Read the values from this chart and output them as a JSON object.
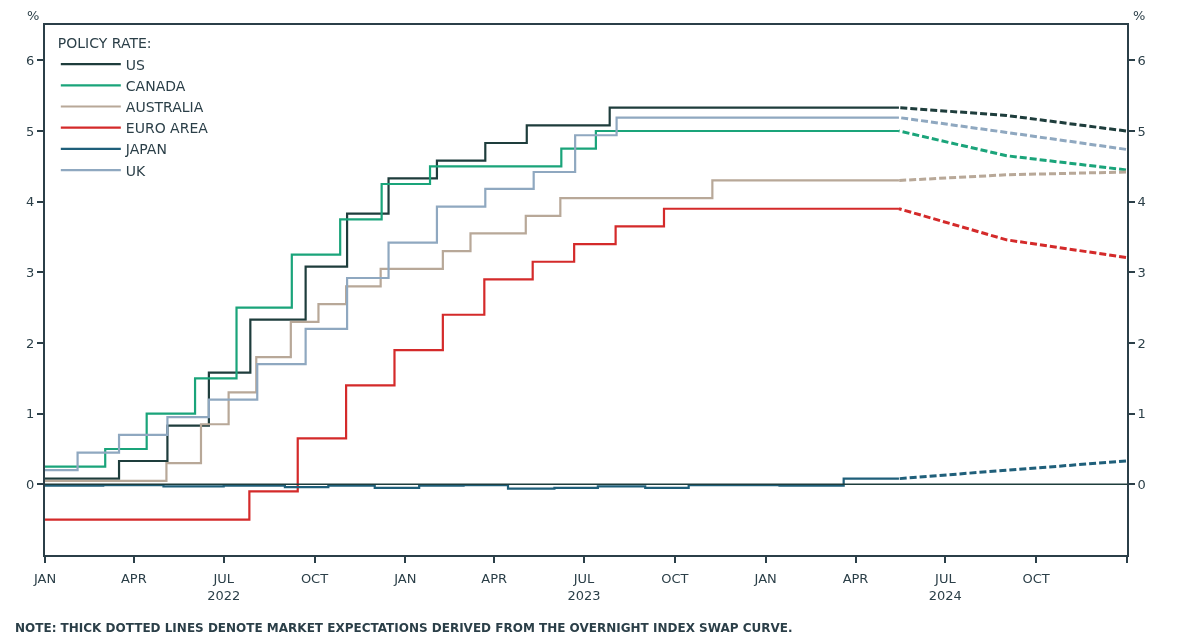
{
  "chart_data": {
    "type": "line",
    "legend_title": "POLICY RATE:",
    "ylabel": "%",
    "y2label": "%",
    "annotations": [
      "NOTE: THICK DOTTED LINES DENOTE MARKET EXPECTATIONS DERIVED FROM THE OVERNIGHT INDEX SWAP CURVE."
    ],
    "xlim": [
      "2022-01-01",
      "2025-01-01"
    ],
    "xticks": [
      {
        "value": "2022-01-01",
        "label": "JAN"
      },
      {
        "value": "2022-04-01",
        "label": "APR"
      },
      {
        "value": "2022-07-01",
        "label": "JUL\n2022"
      },
      {
        "value": "2022-10-01",
        "label": "OCT"
      },
      {
        "value": "2023-01-01",
        "label": "JAN"
      },
      {
        "value": "2023-04-01",
        "label": "APR"
      },
      {
        "value": "2023-07-01",
        "label": "JUL\n2023"
      },
      {
        "value": "2023-10-01",
        "label": "OCT"
      },
      {
        "value": "2024-01-01",
        "label": "JAN"
      },
      {
        "value": "2024-04-01",
        "label": "APR"
      },
      {
        "value": "2024-07-01",
        "label": "JUL\n2024"
      },
      {
        "value": "2024-10-01",
        "label": "OCT"
      },
      {
        "value": "2025-01-01",
        "label": null
      }
    ],
    "ylim": [
      -1,
      6.5
    ],
    "yticks": [
      0,
      1,
      2,
      3,
      4,
      5,
      6
    ],
    "y2lim": [
      -1,
      6.5
    ],
    "y2ticks": [
      0,
      1,
      2,
      3,
      4,
      5,
      6
    ],
    "legend": "top left",
    "ref_lines": [
      {
        "axis": "y",
        "value": 0,
        "label": null,
        "color": "#1e3d3c"
      }
    ],
    "series": [
      {
        "name": "US",
        "type": "step",
        "color": "#1e3d3c",
        "x": [
          "2022-01-01",
          "2022-03-17",
          "2022-05-05",
          "2022-06-16",
          "2022-07-28",
          "2022-09-22",
          "2022-11-03",
          "2022-12-15",
          "2023-02-02",
          "2023-03-23",
          "2023-05-04",
          "2023-07-27",
          "2024-05-15"
        ],
        "values": [
          0.08,
          0.33,
          0.83,
          1.58,
          2.33,
          3.08,
          3.83,
          4.33,
          4.58,
          4.83,
          5.08,
          5.33,
          5.33
        ]
      },
      {
        "name": "CANADA",
        "type": "step",
        "color": "#1aa47a",
        "x": [
          "2022-01-01",
          "2022-03-03",
          "2022-04-14",
          "2022-06-02",
          "2022-07-14",
          "2022-09-08",
          "2022-10-27",
          "2022-12-08",
          "2023-01-26",
          "2023-06-08",
          "2023-07-13",
          "2024-05-15"
        ],
        "values": [
          0.25,
          0.5,
          1.0,
          1.5,
          2.5,
          3.25,
          3.75,
          4.25,
          4.5,
          4.75,
          5.0,
          5.0
        ]
      },
      {
        "name": "AUSTRALIA",
        "type": "step",
        "color": "#b8a898",
        "x": [
          "2022-01-01",
          "2022-05-04",
          "2022-06-08",
          "2022-07-06",
          "2022-08-03",
          "2022-09-07",
          "2022-10-05",
          "2022-11-02",
          "2022-12-07",
          "2023-02-08",
          "2023-03-08",
          "2023-05-03",
          "2023-06-07",
          "2023-11-08",
          "2024-05-15"
        ],
        "values": [
          0.05,
          0.3,
          0.85,
          1.3,
          1.8,
          2.3,
          2.55,
          2.8,
          3.05,
          3.3,
          3.55,
          3.8,
          4.05,
          4.3,
          4.3
        ]
      },
      {
        "name": "EURO AREA",
        "type": "step",
        "color": "#d42a2a",
        "x": [
          "2022-01-01",
          "2022-07-27",
          "2022-09-14",
          "2022-11-02",
          "2022-12-21",
          "2023-02-08",
          "2023-03-22",
          "2023-05-10",
          "2023-06-21",
          "2023-08-02",
          "2023-09-20",
          "2024-05-15"
        ],
        "values": [
          -0.5,
          -0.1,
          0.65,
          1.4,
          1.9,
          2.4,
          2.9,
          3.15,
          3.4,
          3.65,
          3.9,
          3.9
        ]
      },
      {
        "name": "JAPAN",
        "type": "step",
        "color": "#1f5f7a",
        "x": [
          "2022-01-01",
          "2022-03-01",
          "2022-05-01",
          "2022-07-01",
          "2022-09-01",
          "2022-10-15",
          "2022-12-01",
          "2023-01-15",
          "2023-03-01",
          "2023-04-15",
          "2023-06-01",
          "2023-07-15",
          "2023-09-01",
          "2023-10-15",
          "2023-12-01",
          "2024-01-15",
          "2024-03-20",
          "2024-05-15"
        ],
        "values": [
          -0.02,
          -0.01,
          -0.03,
          -0.02,
          -0.04,
          -0.02,
          -0.05,
          -0.02,
          -0.01,
          -0.06,
          -0.05,
          -0.03,
          -0.05,
          -0.01,
          -0.01,
          -0.02,
          0.08,
          0.08
        ]
      },
      {
        "name": "UK",
        "type": "step",
        "color": "#8fa8c0",
        "x": [
          "2022-01-01",
          "2022-02-03",
          "2022-03-17",
          "2022-05-05",
          "2022-06-16",
          "2022-08-04",
          "2022-09-22",
          "2022-11-03",
          "2022-12-15",
          "2023-02-02",
          "2023-03-23",
          "2023-05-11",
          "2023-06-22",
          "2023-08-03",
          "2024-05-15"
        ],
        "values": [
          0.2,
          0.45,
          0.7,
          0.95,
          1.2,
          1.7,
          2.2,
          2.92,
          3.42,
          3.93,
          4.18,
          4.42,
          4.94,
          5.19,
          5.19
        ]
      },
      {
        "line_style": "dashed",
        "color": "#1e3d3c",
        "x": [
          "2024-05-15",
          "2024-09-01",
          "2024-12-31"
        ],
        "values": [
          5.33,
          5.22,
          5.0
        ]
      },
      {
        "line_style": "dashed",
        "color": "#1aa47a",
        "x": [
          "2024-05-15",
          "2024-09-01",
          "2024-12-31"
        ],
        "values": [
          5.0,
          4.65,
          4.45
        ]
      },
      {
        "line_style": "dashed",
        "color": "#b8a898",
        "x": [
          "2024-05-15",
          "2024-09-01",
          "2024-12-31"
        ],
        "values": [
          4.3,
          4.38,
          4.42
        ]
      },
      {
        "line_style": "dashed",
        "color": "#d42a2a",
        "x": [
          "2024-05-15",
          "2024-09-01",
          "2024-12-31"
        ],
        "values": [
          3.9,
          3.46,
          3.21
        ]
      },
      {
        "line_style": "dashed",
        "color": "#1f5f7a",
        "x": [
          "2024-05-15",
          "2024-09-01",
          "2024-12-31"
        ],
        "values": [
          0.08,
          0.2,
          0.33
        ]
      },
      {
        "line_style": "dashed",
        "color": "#8fa8c0",
        "x": [
          "2024-05-15",
          "2024-09-01",
          "2024-12-31"
        ],
        "values": [
          5.19,
          4.98,
          4.74
        ]
      }
    ]
  }
}
